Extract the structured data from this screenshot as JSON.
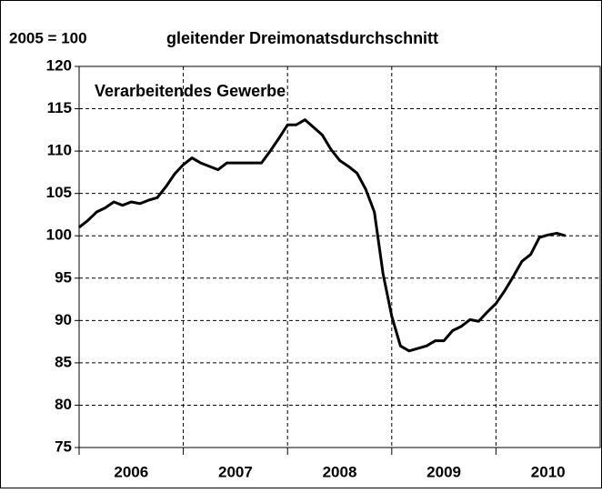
{
  "chart_data": {
    "type": "line",
    "subtitle": "2005 = 100",
    "title": "gleitender Dreimonatsdurchschnitt",
    "annotation": "Verarbeitendes Gewerbe",
    "year_labels": [
      "2006",
      "2007",
      "2008",
      "2009",
      "2010"
    ],
    "categories": [
      null,
      null,
      null,
      null,
      null,
      null,
      null,
      null,
      null,
      null,
      null,
      null,
      null,
      null,
      null,
      null,
      null,
      null,
      null,
      null,
      null,
      null,
      null,
      null,
      null,
      null,
      null,
      null,
      null,
      null,
      null,
      null,
      null,
      null,
      null,
      null,
      null,
      null,
      null,
      null,
      null,
      null,
      null,
      null,
      null,
      null,
      null,
      null,
      null,
      null,
      null,
      null,
      null,
      null,
      null,
      null,
      null
    ],
    "series": [
      {
        "name": null,
        "color": "#000000",
        "values": [
          101.0,
          101.8,
          102.8,
          103.3,
          104.0,
          103.6,
          104.0,
          103.8,
          104.2,
          104.5,
          105.8,
          107.3,
          108.4,
          109.2,
          108.6,
          108.2,
          107.8,
          108.6,
          108.6,
          108.6,
          108.6,
          108.6,
          110.0,
          111.5,
          113.1,
          113.1,
          113.7,
          112.8,
          111.9,
          110.2,
          108.9,
          108.2,
          107.4,
          105.5,
          102.8,
          95.5,
          90.5,
          87.0,
          86.4,
          86.7,
          87.0,
          87.6,
          87.6,
          88.8,
          89.3,
          90.1,
          89.9,
          91.0,
          92.0,
          93.5,
          95.2,
          97.0,
          97.8,
          99.8,
          100.1,
          100.3,
          100.0
        ]
      }
    ],
    "ylim": [
      75,
      120
    ],
    "yticks": [
      75,
      80,
      85,
      90,
      95,
      100,
      105,
      110,
      115,
      120
    ],
    "grid": true
  }
}
